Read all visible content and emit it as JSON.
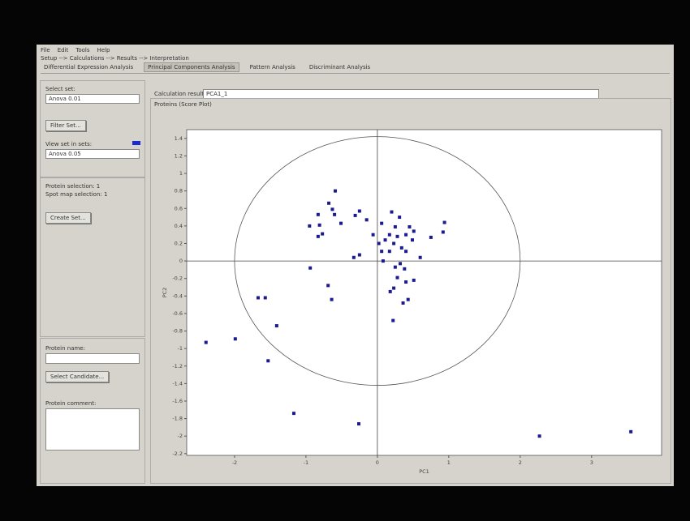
{
  "menu": [
    "File",
    "Edit",
    "Tools",
    "Help"
  ],
  "breadcrumb": "Setup --> Calculations --> Results --> Interpretation",
  "tabs": [
    "Differential Expression Analysis",
    "Principal Components Analysis",
    "Pattern Analysis",
    "Discriminant Analysis"
  ],
  "active_tab": 1,
  "left_panel": {
    "select_set_label": "Select set:",
    "select_set_value": "Anova 0.01",
    "filter_button": "Filter Set...",
    "view_set_label": "View set in sets:",
    "view_set_value": "Anova 0.05",
    "protein_selection": "Protein selection:  1",
    "spot_map_selection": "Spot map selection:  1",
    "create_button": "Create Set...",
    "protein_name_label": "Protein name:",
    "select_candidate_button": "Select Candidate...",
    "protein_comment_label": "Protein comment:"
  },
  "calculation_result": {
    "label": "Calculation result:",
    "value": "PCA1_1"
  },
  "plot": {
    "type": "scatter",
    "title": "Proteins (Score Plot)",
    "xlabel": "PC1",
    "ylabel": "PC2",
    "color": "#1b1b8f",
    "xlim": [
      -2.67,
      3.98
    ],
    "ylim": [
      -2.22,
      1.5
    ],
    "xticks": [
      -2,
      -1,
      0,
      1,
      2,
      3
    ],
    "yticks": [
      -2.2,
      -2,
      -1.8,
      -1.6,
      -1.4,
      -1.2,
      -1,
      -0.8,
      -0.6,
      -0.4,
      -0.2,
      0,
      0.2,
      0.4,
      0.6,
      0.8,
      1,
      1.2,
      1.4
    ],
    "ellipse": {
      "rx": 2,
      "ry": 1.42
    },
    "x": [
      -2.4,
      -1.99,
      -1.53,
      -1.67,
      -1.57,
      -1.41,
      -1.17,
      -0.26,
      2.27,
      3.55,
      -0.94,
      -0.69,
      -0.64,
      -0.95,
      -0.83,
      -0.81,
      -0.83,
      -0.77,
      -0.68,
      -0.63,
      -0.59,
      -0.6,
      -0.51,
      -0.31,
      -0.25,
      -0.15,
      -0.33,
      -0.25,
      -0.06,
      0.06,
      0.02,
      0.06,
      0.11,
      0.17,
      0.2,
      0.25,
      0.23,
      0.28,
      0.31,
      0.34,
      0.4,
      0.45,
      0.49,
      0.4,
      0.25,
      0.32,
      0.38,
      0.28,
      0.23,
      0.18,
      0.4,
      0.51,
      0.36,
      0.43,
      0.22,
      0.6,
      0.75,
      0.92,
      0.94,
      0.51,
      0.17,
      0.08
    ],
    "y": [
      -0.93,
      -0.89,
      -1.14,
      -0.42,
      -0.42,
      -0.74,
      -1.74,
      -1.86,
      -2.0,
      -1.95,
      -0.08,
      -0.28,
      -0.44,
      0.4,
      0.53,
      0.41,
      0.28,
      0.31,
      0.66,
      0.59,
      0.8,
      0.53,
      0.43,
      0.52,
      0.57,
      0.47,
      0.04,
      0.07,
      0.3,
      0.43,
      0.2,
      0.11,
      0.24,
      0.3,
      0.56,
      0.39,
      0.2,
      0.28,
      0.5,
      0.15,
      0.3,
      0.39,
      0.24,
      0.11,
      -0.07,
      -0.03,
      -0.09,
      -0.19,
      -0.31,
      -0.35,
      -0.24,
      -0.22,
      -0.48,
      -0.44,
      -0.68,
      0.04,
      0.27,
      0.33,
      0.44,
      0.34,
      0.11,
      0.0
    ]
  }
}
